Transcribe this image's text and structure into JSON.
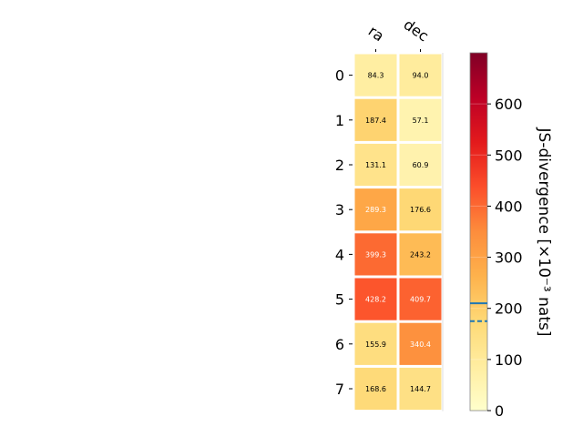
{
  "chart_data": {
    "type": "heatmap",
    "columns": [
      "ra",
      "dec"
    ],
    "rows": [
      "0",
      "1",
      "2",
      "3",
      "4",
      "5",
      "6",
      "7"
    ],
    "values": [
      [
        84.3,
        94.0
      ],
      [
        187.4,
        57.1
      ],
      [
        131.1,
        60.9
      ],
      [
        289.3,
        176.6
      ],
      [
        399.3,
        243.2
      ],
      [
        428.2,
        409.7
      ],
      [
        155.9,
        340.4
      ],
      [
        168.6,
        144.7
      ]
    ],
    "colorbar": {
      "label": "JS-divergence [×10⁻³ nats]",
      "range": [
        0,
        700
      ],
      "ticks": [
        0,
        100,
        200,
        300,
        400,
        500,
        600
      ],
      "colormap": "YlOrRd",
      "markers": [
        {
          "value": 210,
          "style": "solid",
          "color": "#1f77b4"
        },
        {
          "value": 175,
          "style": "dashed",
          "color": "#1f77b4"
        }
      ]
    }
  }
}
